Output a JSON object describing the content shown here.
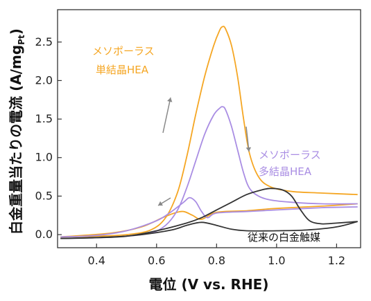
{
  "chart_data": {
    "type": "line",
    "xlabel": "電位 (V vs. RHE)",
    "ylabel_main": "白金重量当たりの電流 (A/mg",
    "ylabel_sub": "Pt",
    "ylabel_close": ")",
    "xlim": [
      0.27,
      1.28
    ],
    "ylim": [
      -0.17,
      2.92
    ],
    "xticks": [
      "0.4",
      "0.6",
      "0.8",
      "1.0",
      "1.2"
    ],
    "yticks": [
      "0.0",
      "0.5",
      "1.0",
      "1.5",
      "2.0",
      "2.5"
    ],
    "grid": false,
    "colors": {
      "single": "#f5a623",
      "poly": "#a98de3",
      "conv": "#333333",
      "arrow": "#888888"
    },
    "annotations": {
      "single_line1": "メソポーラス",
      "single_line2": "単結晶HEA",
      "poly_line1": "メソポーラス",
      "poly_line2": "多結晶HEA",
      "conv": "従来の白金触媒"
    },
    "series": [
      {
        "key": "single",
        "forward": [
          [
            0.28,
            -0.03
          ],
          [
            0.4,
            -0.02
          ],
          [
            0.5,
            0.0
          ],
          [
            0.58,
            0.06
          ],
          [
            0.63,
            0.22
          ],
          [
            0.67,
            0.55
          ],
          [
            0.7,
            1.0
          ],
          [
            0.73,
            1.55
          ],
          [
            0.76,
            2.05
          ],
          [
            0.79,
            2.45
          ],
          [
            0.81,
            2.65
          ],
          [
            0.82,
            2.7
          ],
          [
            0.83,
            2.67
          ],
          [
            0.85,
            2.45
          ],
          [
            0.87,
            2.05
          ],
          [
            0.89,
            1.5
          ],
          [
            0.91,
            1.05
          ],
          [
            0.94,
            0.75
          ],
          [
            0.98,
            0.62
          ],
          [
            1.05,
            0.56
          ],
          [
            1.15,
            0.54
          ],
          [
            1.27,
            0.52
          ]
        ],
        "backward": [
          [
            1.27,
            0.4
          ],
          [
            1.15,
            0.37
          ],
          [
            1.0,
            0.34
          ],
          [
            0.9,
            0.31
          ],
          [
            0.8,
            0.29
          ],
          [
            0.75,
            0.2
          ],
          [
            0.72,
            0.25
          ],
          [
            0.69,
            0.3
          ],
          [
            0.66,
            0.28
          ],
          [
            0.62,
            0.22
          ],
          [
            0.55,
            0.1
          ],
          [
            0.45,
            0.02
          ],
          [
            0.28,
            -0.03
          ]
        ]
      },
      {
        "key": "poly",
        "forward": [
          [
            0.28,
            -0.05
          ],
          [
            0.4,
            -0.04
          ],
          [
            0.5,
            -0.02
          ],
          [
            0.58,
            0.02
          ],
          [
            0.63,
            0.12
          ],
          [
            0.67,
            0.32
          ],
          [
            0.7,
            0.6
          ],
          [
            0.73,
            0.95
          ],
          [
            0.76,
            1.3
          ],
          [
            0.79,
            1.55
          ],
          [
            0.81,
            1.64
          ],
          [
            0.82,
            1.66
          ],
          [
            0.83,
            1.62
          ],
          [
            0.85,
            1.4
          ],
          [
            0.87,
            1.1
          ],
          [
            0.89,
            0.8
          ],
          [
            0.91,
            0.6
          ],
          [
            0.94,
            0.5
          ],
          [
            0.98,
            0.45
          ],
          [
            1.05,
            0.42
          ],
          [
            1.15,
            0.4
          ],
          [
            1.27,
            0.4
          ]
        ],
        "backward": [
          [
            1.27,
            0.36
          ],
          [
            1.15,
            0.35
          ],
          [
            1.0,
            0.32
          ],
          [
            0.9,
            0.3
          ],
          [
            0.8,
            0.28
          ],
          [
            0.77,
            0.22
          ],
          [
            0.75,
            0.3
          ],
          [
            0.73,
            0.43
          ],
          [
            0.71,
            0.48
          ],
          [
            0.69,
            0.42
          ],
          [
            0.65,
            0.3
          ],
          [
            0.6,
            0.18
          ],
          [
            0.5,
            0.05
          ],
          [
            0.4,
            -0.01
          ],
          [
            0.28,
            -0.03
          ]
        ]
      },
      {
        "key": "conv",
        "forward": [
          [
            0.28,
            -0.05
          ],
          [
            0.4,
            -0.04
          ],
          [
            0.5,
            -0.02
          ],
          [
            0.6,
            0.05
          ],
          [
            0.7,
            0.15
          ],
          [
            0.75,
            0.22
          ],
          [
            0.8,
            0.32
          ],
          [
            0.85,
            0.42
          ],
          [
            0.9,
            0.52
          ],
          [
            0.95,
            0.58
          ],
          [
            0.98,
            0.6
          ],
          [
            1.02,
            0.58
          ],
          [
            1.05,
            0.5
          ],
          [
            1.08,
            0.32
          ],
          [
            1.11,
            0.18
          ],
          [
            1.15,
            0.14
          ],
          [
            1.2,
            0.15
          ],
          [
            1.27,
            0.17
          ]
        ],
        "backward": [
          [
            1.27,
            0.17
          ],
          [
            1.2,
            0.1
          ],
          [
            1.1,
            0.06
          ],
          [
            1.0,
            0.05
          ],
          [
            0.9,
            0.05
          ],
          [
            0.85,
            0.07
          ],
          [
            0.8,
            0.12
          ],
          [
            0.75,
            0.16
          ],
          [
            0.7,
            0.12
          ],
          [
            0.65,
            0.06
          ],
          [
            0.55,
            0.0
          ],
          [
            0.45,
            -0.03
          ],
          [
            0.28,
            -0.05
          ]
        ]
      }
    ]
  }
}
